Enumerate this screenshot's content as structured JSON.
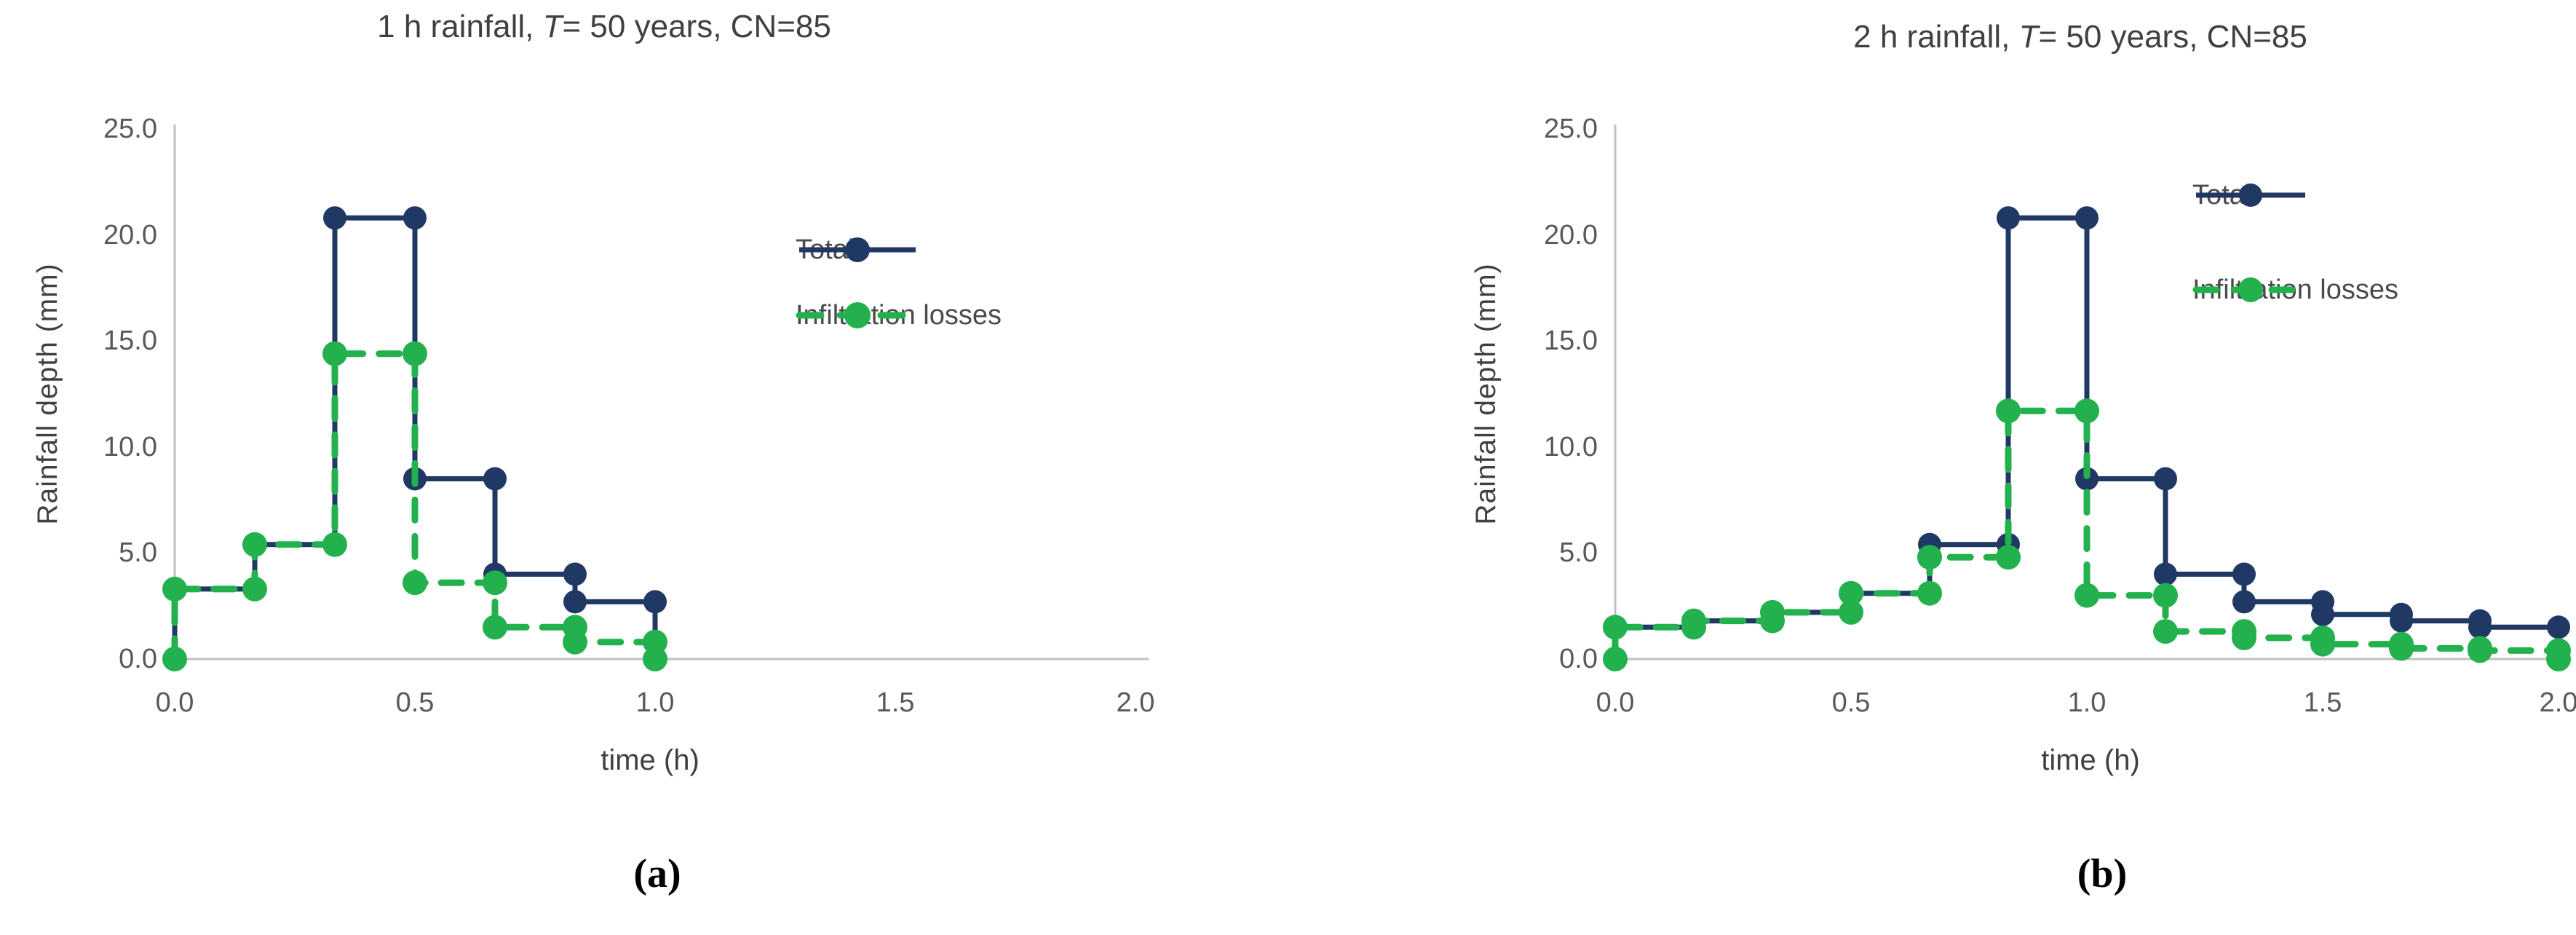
{
  "figure": {
    "background": "#ffffff",
    "colors": {
      "total_series": "#1f3864",
      "infiltration_series": "#22b14c",
      "axis_line": "#c0c0c0",
      "tick_text": "#595959",
      "title_text": "#404040"
    }
  },
  "chart_data": [
    {
      "type": "line",
      "subtype": "step-hyetograph",
      "panel": "a",
      "caption": "(a)",
      "title_parts": [
        {
          "text": "1 h rainfall, ",
          "italic": false
        },
        {
          "text": "T",
          "italic": true
        },
        {
          "text": "= 50 years,  CN=85",
          "italic": false
        }
      ],
      "xlabel": "time (h)",
      "ylabel": "Rainfall depth  (mm)",
      "xlim": [
        0.0,
        2.0
      ],
      "ylim": [
        0.0,
        25.0
      ],
      "x_ticks": [
        "0.0",
        "0.5",
        "1.0",
        "1.5",
        "2.0"
      ],
      "y_ticks": [
        "0.0",
        "5.0",
        "10.0",
        "15.0",
        "20.0",
        "25.0"
      ],
      "grid": false,
      "legend_position": "inside-right",
      "block_duration_h": 0.166667,
      "series": [
        {
          "name": "Total",
          "color": "#1f3864",
          "line_style": "solid",
          "marker": "circle",
          "blocks_mm": [
            3.3,
            5.4,
            20.8,
            8.5,
            4.0,
            2.7
          ],
          "starts_at_zero": true,
          "ends_at_zero": true,
          "marker_at_start_zero": false,
          "marker_at_end_zero": false
        },
        {
          "name": "Infiltration losses",
          "color": "#22b14c",
          "line_style": "dashed",
          "marker": "circle",
          "blocks_mm": [
            3.3,
            5.4,
            14.4,
            3.6,
            1.5,
            0.8
          ],
          "starts_at_zero": true,
          "ends_at_zero": true,
          "marker_at_start_zero": true,
          "marker_at_end_zero": true
        }
      ]
    },
    {
      "type": "line",
      "subtype": "step-hyetograph",
      "panel": "b",
      "caption": "(b)",
      "title_parts": [
        {
          "text": "2 h rainfall, ",
          "italic": false
        },
        {
          "text": "T",
          "italic": true
        },
        {
          "text": "= 50 years, CN=85",
          "italic": false
        }
      ],
      "xlabel": "time (h)",
      "ylabel": "Rainfall depth  (mm)",
      "xlim": [
        0.0,
        2.0
      ],
      "ylim": [
        0.0,
        25.0
      ],
      "x_ticks": [
        "0.0",
        "0.5",
        "1.0",
        "1.5",
        "2.0"
      ],
      "y_ticks": [
        "0.0",
        "5.0",
        "10.0",
        "15.0",
        "20.0",
        "25.0"
      ],
      "grid": false,
      "legend_position": "top-right",
      "block_duration_h": 0.166667,
      "series": [
        {
          "name": "Total",
          "color": "#1f3864",
          "line_style": "solid",
          "marker": "circle",
          "blocks_mm": [
            1.5,
            1.8,
            2.2,
            3.1,
            5.4,
            20.8,
            8.5,
            4.0,
            2.7,
            2.1,
            1.8,
            1.5
          ],
          "starts_at_zero": true,
          "ends_at_zero": true,
          "marker_at_start_zero": false,
          "marker_at_end_zero": false
        },
        {
          "name": "Infiltration losses",
          "color": "#22b14c",
          "line_style": "dashed",
          "marker": "circle",
          "blocks_mm": [
            1.5,
            1.8,
            2.2,
            3.1,
            4.8,
            11.7,
            3.0,
            1.3,
            1.0,
            0.7,
            0.5,
            0.4
          ],
          "starts_at_zero": true,
          "ends_at_zero": true,
          "marker_at_start_zero": true,
          "marker_at_end_zero": true
        }
      ]
    }
  ]
}
